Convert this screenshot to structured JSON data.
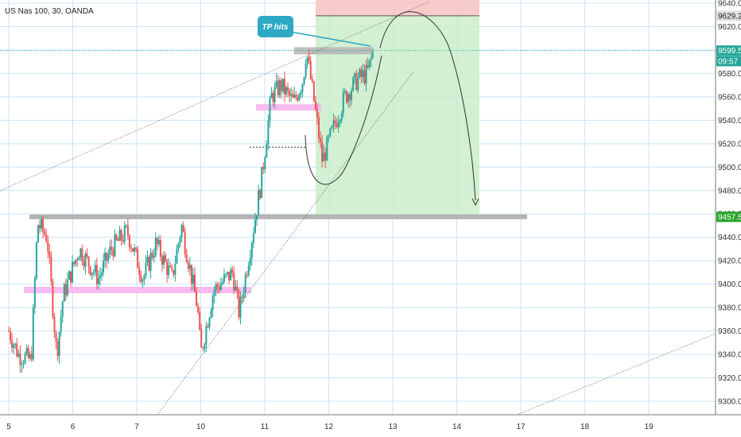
{
  "header": {
    "title": "US Nas 100, 30, OANDA"
  },
  "price_scale": {
    "ticks": [
      "9640.0",
      "9620.0",
      "9600.0",
      "9580.0",
      "9560.0",
      "9540.0",
      "9520.0",
      "9500.0",
      "9480.0",
      "9460.0",
      "9440.0",
      "9420.0",
      "9400.0",
      "9380.0",
      "9360.0",
      "9340.0",
      "9320.0",
      "9300.0"
    ],
    "tick_values": [
      9640,
      9620,
      9600,
      9580,
      9560,
      9540,
      9520,
      9500,
      9480,
      9460,
      9440,
      9420,
      9400,
      9380,
      9360,
      9340,
      9320,
      9300
    ],
    "badges": [
      {
        "text": "9629.2",
        "value": 9629.2,
        "color": "#e0e0e0",
        "text_color": "#222222"
      },
      {
        "text": "9599.5",
        "value": 9599.5,
        "color": "#26a69a",
        "text_color": "#ffffff"
      },
      {
        "text": "09:57",
        "value": 9590.5,
        "color": "#26a69a",
        "text_color": "#ffffff"
      },
      {
        "text": "9457.5",
        "value": 9457.5,
        "color": "#2aa52a",
        "text_color": "#ffffff"
      }
    ]
  },
  "time_scale": {
    "ticks": [
      "5",
      "6",
      "7",
      "10",
      "11",
      "12",
      "13",
      "14",
      "17",
      "18",
      "19"
    ],
    "tick_values": [
      0,
      1,
      2,
      3,
      4,
      5,
      6,
      7,
      8,
      9,
      10
    ]
  },
  "annotations": {
    "callout": "TP hits"
  },
  "colors": {
    "up": "#26a69a",
    "down": "#ef5350",
    "grid": "#c8e4f6",
    "profit": "#c8ecc8",
    "stop": "#f7c5c5",
    "level": "#b4b4b4",
    "support": "#f8b4f0"
  },
  "chart_data": {
    "type": "candlestick",
    "symbol": "US Nas 100, 30, OANDA",
    "x_axis_days": [
      "5",
      "6",
      "7",
      "10",
      "11",
      "12",
      "13",
      "14",
      "17",
      "18",
      "19"
    ],
    "ylim": [
      9290,
      9645
    ],
    "key_levels": {
      "stop": 9629.2,
      "current": 9599.5,
      "target": 9457.5,
      "resistance_zone": 9599,
      "support_zone_upper": 9551,
      "support_zone_lower": 9395
    },
    "price_path": [
      {
        "x": 0.0,
        "close": 9360
      },
      {
        "x": 0.15,
        "close": 9340
      },
      {
        "x": 0.35,
        "close": 9335
      },
      {
        "x": 0.45,
        "close": 9452
      },
      {
        "x": 0.6,
        "close": 9440
      },
      {
        "x": 0.75,
        "close": 9340
      },
      {
        "x": 0.85,
        "close": 9390
      },
      {
        "x": 1.1,
        "close": 9430
      },
      {
        "x": 1.4,
        "close": 9405
      },
      {
        "x": 1.6,
        "close": 9430
      },
      {
        "x": 1.85,
        "close": 9445
      },
      {
        "x": 2.1,
        "close": 9405
      },
      {
        "x": 2.3,
        "close": 9435
      },
      {
        "x": 2.55,
        "close": 9405
      },
      {
        "x": 2.7,
        "close": 9450
      },
      {
        "x": 2.95,
        "close": 9380
      },
      {
        "x": 3.0,
        "close": 9340
      },
      {
        "x": 3.2,
        "close": 9395
      },
      {
        "x": 3.5,
        "close": 9410
      },
      {
        "x": 3.6,
        "close": 9375
      },
      {
        "x": 3.8,
        "close": 9440
      },
      {
        "x": 3.95,
        "close": 9490
      },
      {
        "x": 4.1,
        "close": 9560
      },
      {
        "x": 4.25,
        "close": 9570
      },
      {
        "x": 4.45,
        "close": 9555
      },
      {
        "x": 4.6,
        "close": 9575
      },
      {
        "x": 4.65,
        "close": 9600
      },
      {
        "x": 4.8,
        "close": 9545
      },
      {
        "x": 4.9,
        "close": 9505
      },
      {
        "x": 5.05,
        "close": 9530
      },
      {
        "x": 5.25,
        "close": 9560
      },
      {
        "x": 5.45,
        "close": 9575
      },
      {
        "x": 5.6,
        "close": 9580
      },
      {
        "x": 5.7,
        "close": 9599.5
      }
    ]
  }
}
